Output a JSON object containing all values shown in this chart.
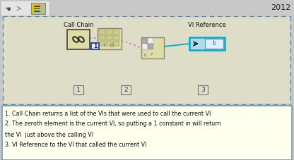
{
  "outer_bg": "#c8c8c8",
  "diagram_bg": "#ddddc8",
  "note_bg": "#ffffee",
  "title_year": "2012",
  "call_chain_label": "Call Chain",
  "vi_ref_label": "VI Reference",
  "notes": [
    "1. Call Chain returns a list of the VIs that were used to call the current VI",
    "2. The zeroth element is the current VI, so putting a 1 constant in will return",
    "the VI  just above the calling VI",
    "3. VI Reference to the VI that called the current VI"
  ],
  "dashed_border_color": "#4488bb",
  "wire_pink": "#ee66cc",
  "wire_blue": "#00aacc",
  "node_bg": "#ddddaa",
  "node_border": "#888866",
  "const_border": "#3355aa",
  "vi_ref_border": "#00aacc",
  "vi_ref_bg": "#aaddee",
  "chain_bg": "#ddddaa",
  "chain_border": "#444433",
  "index_block_bg": "#ddddaa",
  "checkerboard_dark": "#aaaaaa",
  "checkerboard_light": "#eeeeee",
  "toolbar_bg": "#e4e4e4",
  "note_border": "#7799aa"
}
